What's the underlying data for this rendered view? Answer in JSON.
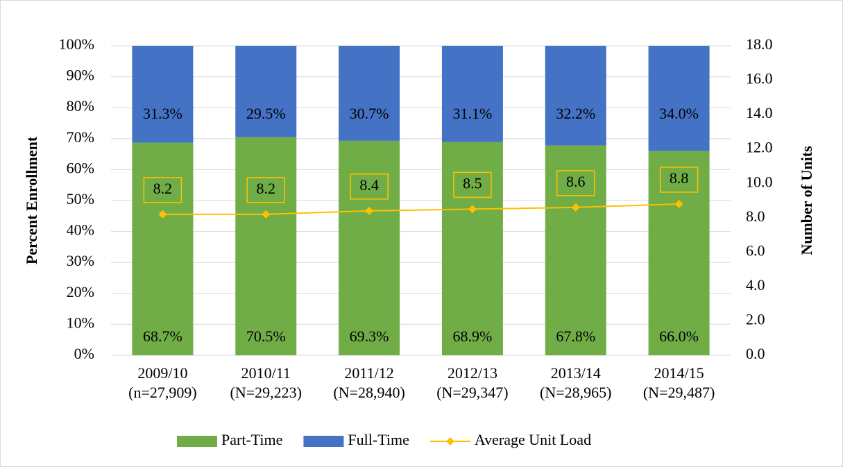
{
  "chart_data": {
    "type": "bar",
    "stacked": true,
    "categories": [
      [
        "2009/10",
        "(n=27,909)"
      ],
      [
        "2010/11",
        "(N=29,223)"
      ],
      [
        "2011/12",
        "(N=28,940)"
      ],
      [
        "2012/13",
        "(N=29,347)"
      ],
      [
        "2013/14",
        "(N=28,965)"
      ],
      [
        "2014/15",
        "(N=29,487)"
      ]
    ],
    "series": [
      {
        "name": "Part-Time",
        "color": "#70ad47",
        "values": [
          68.7,
          70.5,
          69.3,
          68.9,
          67.8,
          66.0
        ],
        "value_labels": [
          "68.7%",
          "70.5%",
          "69.3%",
          "68.9%",
          "67.8%",
          "66.0%"
        ]
      },
      {
        "name": "Full-Time",
        "color": "#4472c4",
        "values": [
          31.3,
          29.5,
          30.7,
          31.1,
          32.2,
          34.0
        ],
        "value_labels": [
          "31.3%",
          "29.5%",
          "30.7%",
          "31.1%",
          "32.2%",
          "34.0%"
        ]
      },
      {
        "name": "Average Unit Load",
        "type": "line",
        "axis": "y2",
        "color": "#ffc000",
        "values": [
          8.2,
          8.2,
          8.4,
          8.5,
          8.6,
          8.8
        ]
      }
    ],
    "y_label": "Percent Enrollment",
    "y2_label": "Number of Units",
    "ylim": [
      0,
      100
    ],
    "yticks": [
      {
        "value": 0,
        "label": "0%"
      },
      {
        "value": 10,
        "label": "10%"
      },
      {
        "value": 20,
        "label": "20%"
      },
      {
        "value": 30,
        "label": "30%"
      },
      {
        "value": 40,
        "label": "40%"
      },
      {
        "value": 50,
        "label": "50%"
      },
      {
        "value": 60,
        "label": "60%"
      },
      {
        "value": 70,
        "label": "70%"
      },
      {
        "value": 80,
        "label": "80%"
      },
      {
        "value": 90,
        "label": "90%"
      },
      {
        "value": 100,
        "label": "100%"
      }
    ],
    "y2lim": [
      0,
      18
    ],
    "y2ticks": [
      {
        "value": 0,
        "label": "0.0"
      },
      {
        "value": 2,
        "label": "2.0"
      },
      {
        "value": 4,
        "label": "4.0"
      },
      {
        "value": 6,
        "label": "6.0"
      },
      {
        "value": 8,
        "label": "8.0"
      },
      {
        "value": 10,
        "label": "10.0"
      },
      {
        "value": 12,
        "label": "12.0"
      },
      {
        "value": 14,
        "label": "14.0"
      },
      {
        "value": 16,
        "label": "16.0"
      },
      {
        "value": 18,
        "label": "18.0"
      }
    ],
    "grid": true,
    "legend": "bottom"
  }
}
